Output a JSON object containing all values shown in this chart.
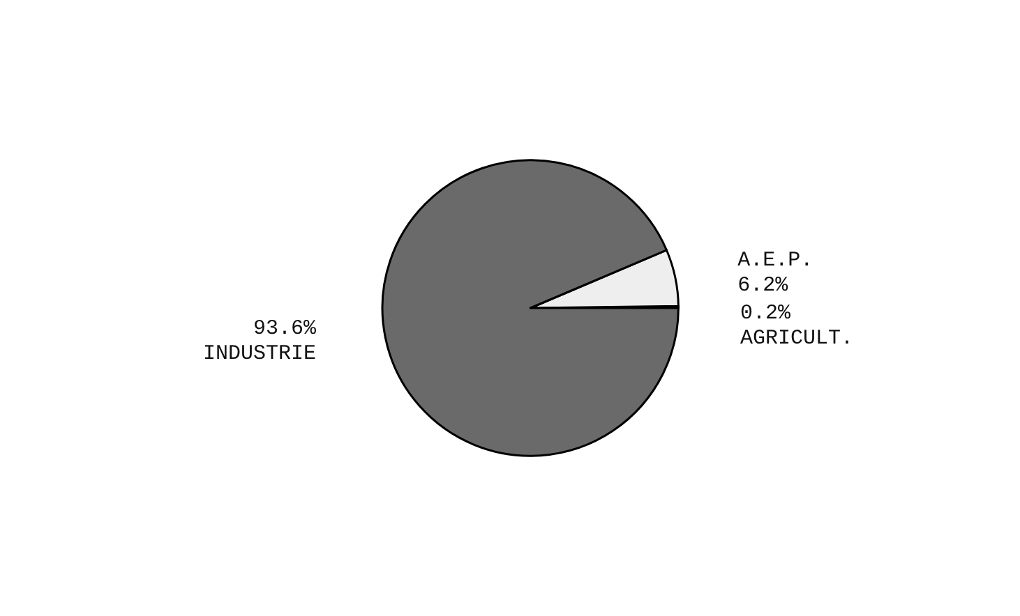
{
  "chart_data": {
    "type": "pie",
    "categories": [
      "AGRICULT.",
      "A.E.P.",
      "INDUSTRIE"
    ],
    "values": [
      0.2,
      6.2,
      93.6
    ],
    "colors": [
      "#ffffff",
      "#eeeeee",
      "#6a6a6a"
    ],
    "value_labels": [
      "0.2%",
      "6.2%",
      "93.6%"
    ]
  }
}
